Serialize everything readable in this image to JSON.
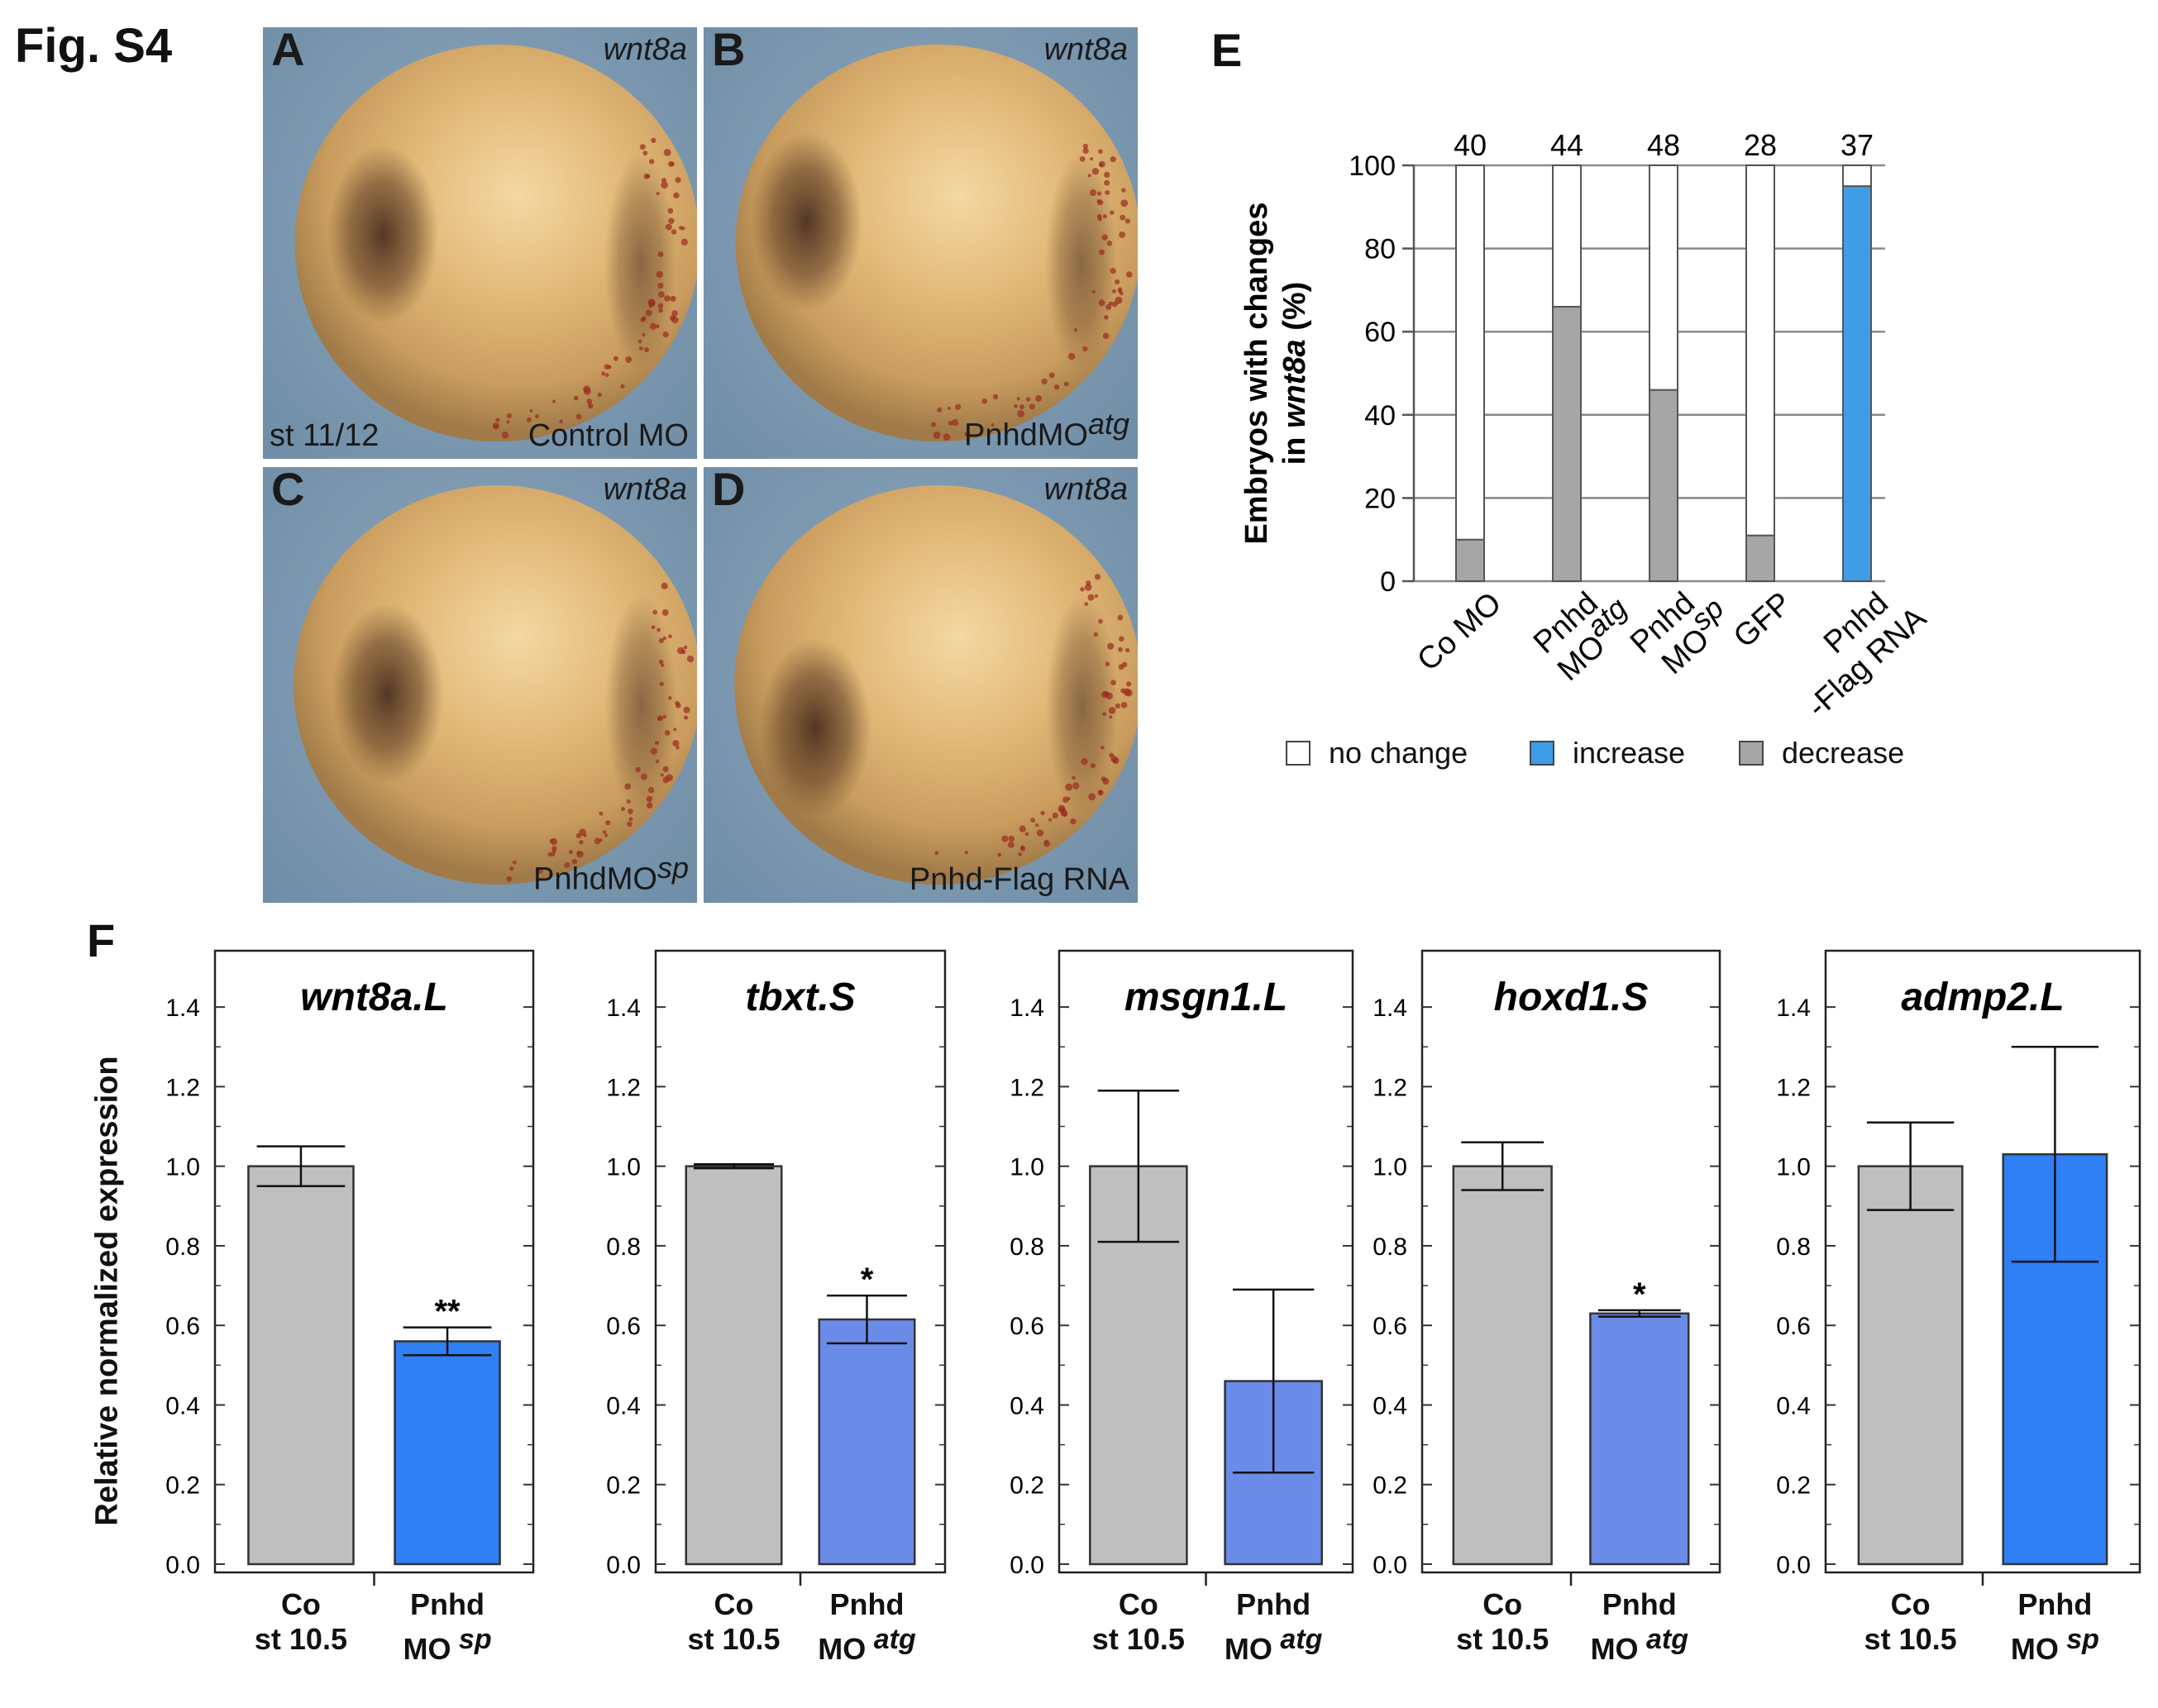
{
  "figure_title": "Fig. S4",
  "panels": [
    {
      "letter": "A",
      "gene": "wnt8a",
      "stage": "st 11/12",
      "condition": "Control MO",
      "sup": ""
    },
    {
      "letter": "B",
      "gene": "wnt8a",
      "stage": "",
      "condition": "PnhdMO",
      "sup": "atg"
    },
    {
      "letter": "C",
      "gene": "wnt8a",
      "stage": "",
      "condition": "PnhdMO",
      "sup": "sp"
    },
    {
      "letter": "D",
      "gene": "wnt8a",
      "stage": "",
      "condition": "Pnhd-Flag RNA",
      "sup": ""
    }
  ],
  "panel_e": {
    "letter": "E",
    "ylabel_line1": "Embryos with changes",
    "ylabel_line2_pre": "in ",
    "ylabel_line2_gene": "wnt8a",
    "ylabel_line2_post": " (%)",
    "legend": [
      {
        "label": "no change",
        "color": "#ffffff"
      },
      {
        "label": "increase",
        "color": "#3d9ee6"
      },
      {
        "label": "decrease",
        "color": "#a6a6a8"
      }
    ]
  },
  "panel_f": {
    "letter": "F",
    "ylabel": "Relative normalized expression"
  },
  "chart_data": [
    {
      "type": "bar",
      "subtype": "stacked-percent",
      "ylim": [
        0,
        100
      ],
      "yticks": [
        0,
        20,
        40,
        60,
        80,
        100
      ],
      "categories": [
        "Co MO",
        "Pnhd MO atg",
        "Pnhd MO sp",
        "GFP",
        "Pnhd -Flag RNA"
      ],
      "category_lines": [
        {
          "l1": "Co MO",
          "l2": "",
          "sup": ""
        },
        {
          "l1": "Pnhd",
          "l2": "MO",
          "sup": "atg"
        },
        {
          "l1": "Pnhd",
          "l2": "MO",
          "sup": "sp"
        },
        {
          "l1": "GFP",
          "l2": "",
          "sup": ""
        },
        {
          "l1": "Pnhd",
          "l2": "-Flag RNA",
          "sup": ""
        }
      ],
      "n_labels": [
        "40",
        "44",
        "48",
        "28",
        "37"
      ],
      "series": [
        {
          "name": "decrease",
          "color": "#a6a6a8",
          "values": [
            10,
            66,
            46,
            11,
            0
          ]
        },
        {
          "name": "increase",
          "color": "#3d9ee6",
          "values": [
            0,
            0,
            0,
            0,
            95
          ]
        },
        {
          "name": "no change",
          "color": "#ffffff",
          "values": [
            90,
            34,
            54,
            89,
            5
          ]
        }
      ]
    },
    {
      "type": "bar",
      "title": "wnt8a.L",
      "ylim": [
        0,
        1.5
      ],
      "yticks": [
        "0.0",
        "0.2",
        "0.4",
        "0.6",
        "0.8",
        "1.0",
        "1.2",
        "1.4"
      ],
      "categories": [
        {
          "l1": "Co",
          "l2": "st 10.5",
          "sup": ""
        },
        {
          "l1": "Pnhd",
          "l2": "MO",
          "sup": "sp"
        }
      ],
      "values": [
        1.0,
        0.56
      ],
      "err": [
        0.05,
        0.035
      ],
      "colors": [
        "#bfbfbf",
        "#2f7ff5"
      ],
      "sig": [
        "",
        "**"
      ]
    },
    {
      "type": "bar",
      "title": "tbxt.S",
      "ylim": [
        0,
        1.5
      ],
      "yticks": [
        "0.0",
        "0.2",
        "0.4",
        "0.6",
        "0.8",
        "1.0",
        "1.2",
        "1.4"
      ],
      "categories": [
        {
          "l1": "Co",
          "l2": "st 10.5",
          "sup": ""
        },
        {
          "l1": "Pnhd",
          "l2": "MO",
          "sup": "atg"
        }
      ],
      "values": [
        1.0,
        0.615
      ],
      "err": [
        0.005,
        0.06
      ],
      "colors": [
        "#bfbfbf",
        "#6b8be8"
      ],
      "sig": [
        "",
        "*"
      ]
    },
    {
      "type": "bar",
      "title": "msgn1.L",
      "ylim": [
        0,
        1.5
      ],
      "yticks": [
        "0.0",
        "0.2",
        "0.4",
        "0.6",
        "0.8",
        "1.0",
        "1.2",
        "1.4"
      ],
      "categories": [
        {
          "l1": "Co",
          "l2": "st 10.5",
          "sup": ""
        },
        {
          "l1": "Pnhd",
          "l2": "MO",
          "sup": "atg"
        }
      ],
      "values": [
        1.0,
        0.46
      ],
      "err": [
        0.19,
        0.23
      ],
      "colors": [
        "#bfbfbf",
        "#6b8be8"
      ],
      "sig": [
        "",
        ""
      ]
    },
    {
      "type": "bar",
      "title": "hoxd1.S",
      "ylim": [
        0,
        1.5
      ],
      "yticks": [
        "0.0",
        "0.2",
        "0.4",
        "0.6",
        "0.8",
        "1.0",
        "1.2",
        "1.4"
      ],
      "categories": [
        {
          "l1": "Co",
          "l2": "st 10.5",
          "sup": ""
        },
        {
          "l1": "Pnhd",
          "l2": "MO",
          "sup": "atg"
        }
      ],
      "values": [
        1.0,
        0.63
      ],
      "err": [
        0.06,
        0.008
      ],
      "colors": [
        "#bfbfbf",
        "#6b8be8"
      ],
      "sig": [
        "",
        "*"
      ]
    },
    {
      "type": "bar",
      "title": "admp2.L",
      "ylim": [
        0,
        1.5
      ],
      "yticks": [
        "0.0",
        "0.2",
        "0.4",
        "0.6",
        "0.8",
        "1.0",
        "1.2",
        "1.4"
      ],
      "categories": [
        {
          "l1": "Co",
          "l2": "st 10.5",
          "sup": ""
        },
        {
          "l1": "Pnhd",
          "l2": "MO",
          "sup": "sp"
        }
      ],
      "values": [
        1.0,
        1.03
      ],
      "err": [
        0.11,
        0.27
      ],
      "colors": [
        "#bfbfbf",
        "#2f7ff5"
      ],
      "sig": [
        "",
        ""
      ]
    }
  ]
}
